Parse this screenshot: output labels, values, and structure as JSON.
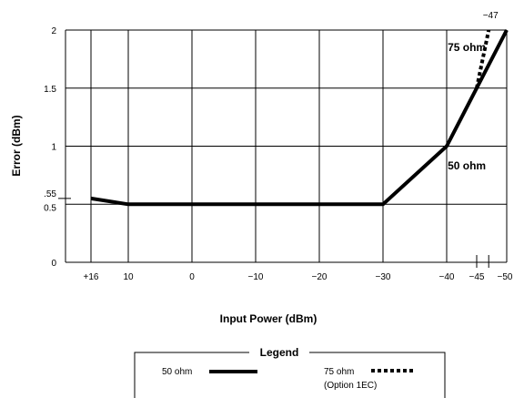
{
  "chart_data": {
    "type": "line",
    "xlabel": "Input Power (dBm)",
    "ylabel": "Error (dBm)",
    "x_ticks": [
      {
        "label": "+16",
        "value": 16
      },
      {
        "label": "10",
        "value": 10
      },
      {
        "label": "0",
        "value": 0
      },
      {
        "label": "−10",
        "value": -10
      },
      {
        "label": "−20",
        "value": -20
      },
      {
        "label": "−30",
        "value": -30
      },
      {
        "label": "−40",
        "value": -40
      },
      {
        "label": "−45",
        "value": -45
      },
      {
        "label": "−50",
        "value": -50
      }
    ],
    "y_ticks": [
      {
        "label": "0",
        "value": 0
      },
      {
        "label": "0.5",
        "value": 0.5
      },
      {
        "label": ".55",
        "value": 0.55
      },
      {
        "label": "1",
        "value": 1
      },
      {
        "label": "1.5",
        "value": 1.5
      },
      {
        "label": "2",
        "value": 2
      }
    ],
    "xlim": [
      16,
      -50
    ],
    "ylim": [
      0,
      2
    ],
    "grid": true,
    "series": [
      {
        "name": "50 ohm",
        "style": "solid",
        "x": [
          16,
          10,
          -30,
          -40,
          -50
        ],
        "y": [
          0.55,
          0.5,
          0.5,
          1.0,
          2.0
        ]
      },
      {
        "name": "75 ohm",
        "style": "dotted",
        "x": [
          -45,
          -47
        ],
        "y": [
          1.5,
          2.0
        ]
      }
    ],
    "annotations": [
      {
        "text": "75 ohm",
        "x": -43.5,
        "y": 1.85
      },
      {
        "text": "50 ohm",
        "x": -43.5,
        "y": 0.83
      },
      {
        "text": "−47",
        "x": -47,
        "y": 2.12
      }
    ],
    "legend": {
      "title": "Legend",
      "placement": "bottom",
      "entries": [
        {
          "label": "50 ohm",
          "sublabel": "",
          "style": "solid"
        },
        {
          "label": "75 ohm",
          "sublabel": "(Option 1EC)",
          "style": "dotted"
        }
      ]
    }
  }
}
